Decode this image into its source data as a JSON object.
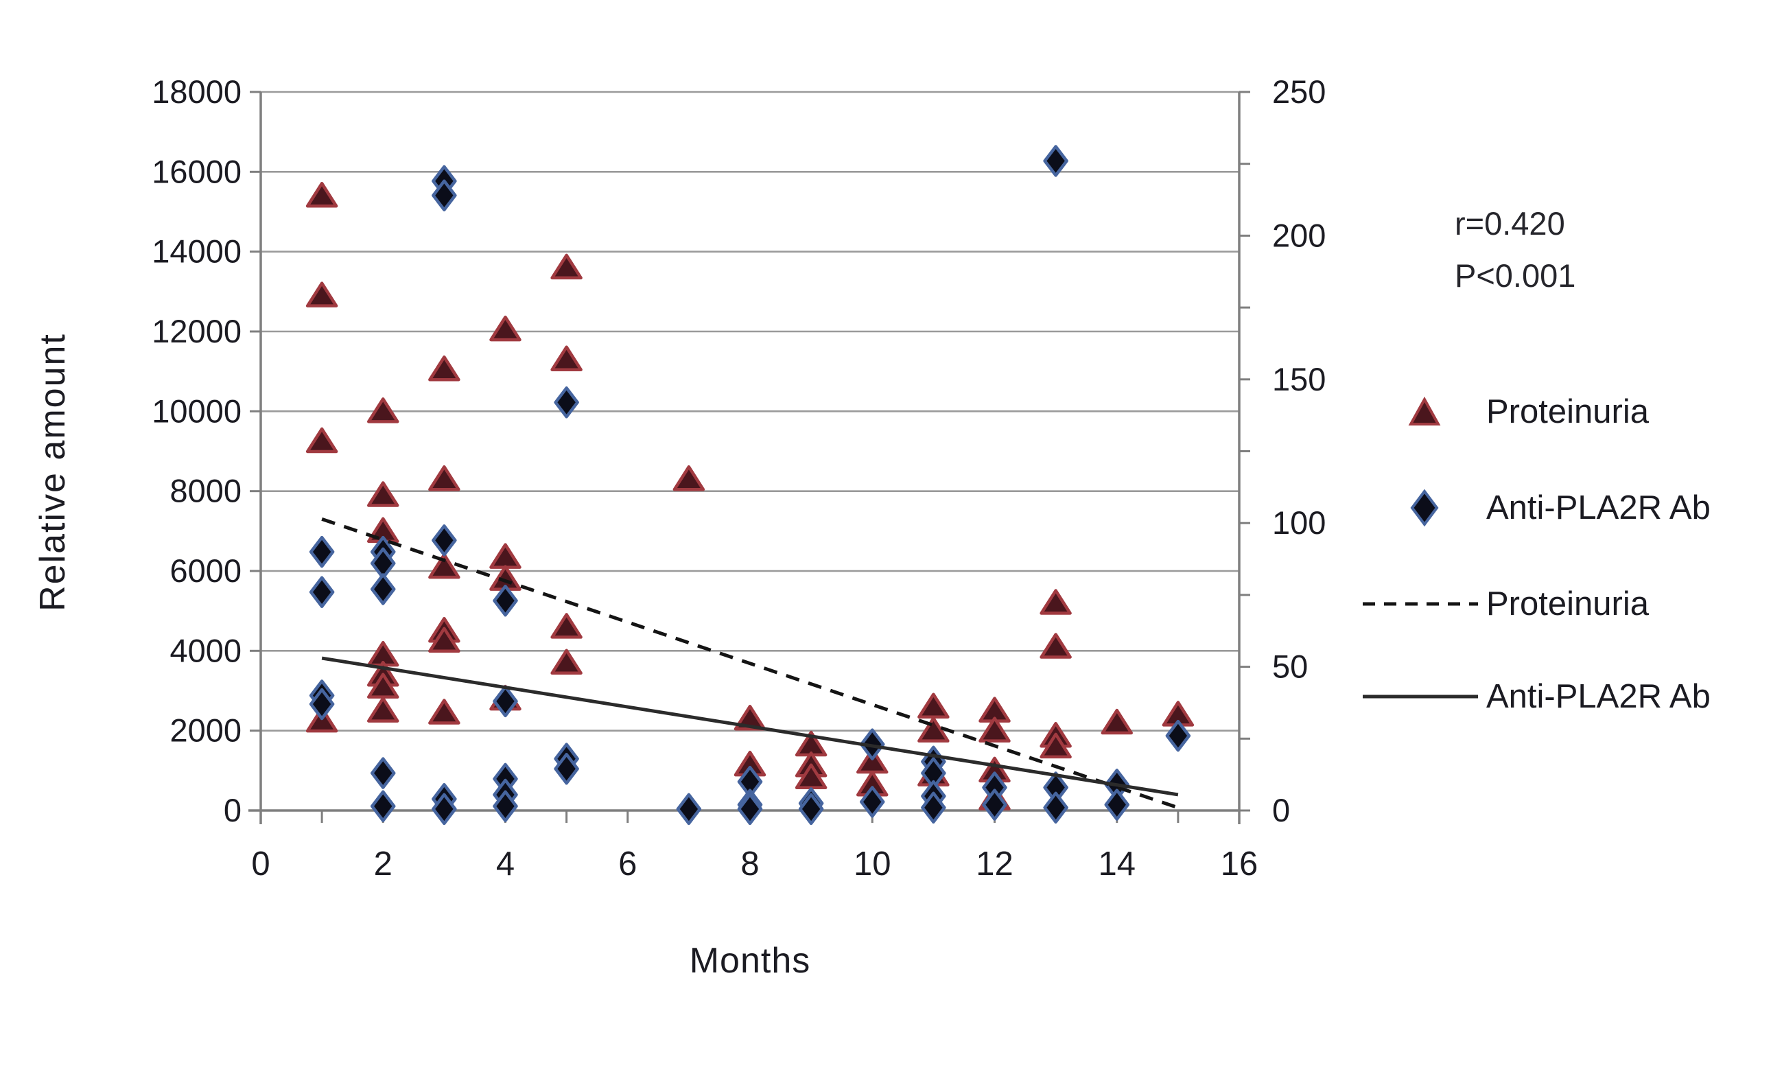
{
  "figure": {
    "y_left_title": "Relative amount",
    "x_title": "Months",
    "annotation": {
      "line1": "r=0.420",
      "line2": "P<0.001"
    },
    "legend": [
      {
        "marker": "triangle-marker",
        "label": "Proteinuria"
      },
      {
        "marker": "diamond-marker",
        "label": "Anti-PLA2R Ab"
      },
      {
        "marker": "dashed-line",
        "label": "Proteinuria"
      },
      {
        "marker": "solid-line",
        "label": "Anti-PLA2R Ab"
      }
    ],
    "colors": {
      "triangle_fill": "#4a161d",
      "triangle_stroke": "#a13a40",
      "diamond_fill": "#0b0d19",
      "diamond_stroke": "#46659f",
      "gridline": "#9a9a9a",
      "axis": "#7f7f7f",
      "trend_dashed": "#141414",
      "trend_solid": "#2b2b2b",
      "text": "#1b1b22"
    }
  },
  "chart_data": {
    "type": "scatter",
    "title": "",
    "xlabel": "Months",
    "ylabel_left": "Relative amount",
    "x_axis": {
      "min": 0,
      "max": 16,
      "label_step": 2,
      "tick_step": 1
    },
    "y_axis_left": {
      "min": 0,
      "max": 18000,
      "label_step": 2000
    },
    "y_axis_right": {
      "min": 0,
      "max": 250,
      "label_step": 50,
      "tick_step": 25
    },
    "grid": "horizontal",
    "legend_position": "right",
    "annotation": "r=0.420 P<0.001",
    "series": [
      {
        "name": "Proteinuria",
        "marker": "triangle",
        "axis": "left",
        "points": [
          [
            1,
            15400
          ],
          [
            1,
            12900
          ],
          [
            1,
            9250
          ],
          [
            1,
            2250
          ],
          [
            2,
            10000
          ],
          [
            2,
            7900
          ],
          [
            2,
            7000
          ],
          [
            2,
            3900
          ],
          [
            2,
            3400
          ],
          [
            2,
            3100
          ],
          [
            2,
            2500
          ],
          [
            3,
            11050
          ],
          [
            3,
            8300
          ],
          [
            3,
            6100
          ],
          [
            3,
            4500
          ],
          [
            3,
            4250
          ],
          [
            3,
            2450
          ],
          [
            4,
            12050
          ],
          [
            4,
            6350
          ],
          [
            4,
            5800
          ],
          [
            4,
            2800
          ],
          [
            5,
            13600
          ],
          [
            5,
            11300
          ],
          [
            5,
            4600
          ],
          [
            5,
            3700
          ],
          [
            7,
            8300
          ],
          [
            8,
            2300
          ],
          [
            8,
            1150
          ],
          [
            9,
            1650
          ],
          [
            9,
            1130
          ],
          [
            9,
            830
          ],
          [
            10,
            1220
          ],
          [
            10,
            650
          ],
          [
            11,
            2600
          ],
          [
            11,
            2000
          ],
          [
            11,
            900
          ],
          [
            12,
            2500
          ],
          [
            12,
            2000
          ],
          [
            12,
            1000
          ],
          [
            12,
            300
          ],
          [
            13,
            5200
          ],
          [
            13,
            4100
          ],
          [
            13,
            1870
          ],
          [
            13,
            1600
          ],
          [
            14,
            2200
          ],
          [
            15,
            2400
          ]
        ]
      },
      {
        "name": "Anti-PLA2R Ab",
        "marker": "diamond",
        "axis": "right",
        "points": [
          [
            1,
            90
          ],
          [
            1,
            76
          ],
          [
            1,
            40
          ],
          [
            1,
            37
          ],
          [
            2,
            90
          ],
          [
            2,
            86
          ],
          [
            2,
            77
          ],
          [
            2,
            13
          ],
          [
            2,
            1.5
          ],
          [
            3,
            219
          ],
          [
            3,
            214
          ],
          [
            3,
            94
          ],
          [
            3,
            4
          ],
          [
            3,
            0.5
          ],
          [
            4,
            73
          ],
          [
            4,
            38
          ],
          [
            4,
            11
          ],
          [
            4,
            5.5
          ],
          [
            4,
            1.5
          ],
          [
            5,
            142
          ],
          [
            5,
            18
          ],
          [
            5,
            14.5
          ],
          [
            7,
            0.5
          ],
          [
            8,
            10
          ],
          [
            8,
            2
          ],
          [
            8,
            0.5
          ],
          [
            9,
            2.5
          ],
          [
            9,
            0.5
          ],
          [
            10,
            23
          ],
          [
            10,
            3
          ],
          [
            11,
            17
          ],
          [
            11,
            13
          ],
          [
            11,
            5
          ],
          [
            11,
            1
          ],
          [
            12,
            8
          ],
          [
            12,
            2
          ],
          [
            13,
            226
          ],
          [
            13,
            8
          ],
          [
            13,
            1
          ],
          [
            14,
            9
          ],
          [
            14,
            2
          ],
          [
            15,
            26
          ]
        ]
      },
      {
        "name": "Proteinuria trend",
        "type": "trendline",
        "style": "dashed",
        "axis": "left",
        "points": [
          [
            1,
            7300
          ],
          [
            15,
            70
          ]
        ]
      },
      {
        "name": "Anti-PLA2R Ab trend",
        "type": "trendline",
        "style": "solid",
        "axis": "right",
        "points": [
          [
            1,
            53
          ],
          [
            15,
            5.5
          ]
        ]
      }
    ]
  }
}
